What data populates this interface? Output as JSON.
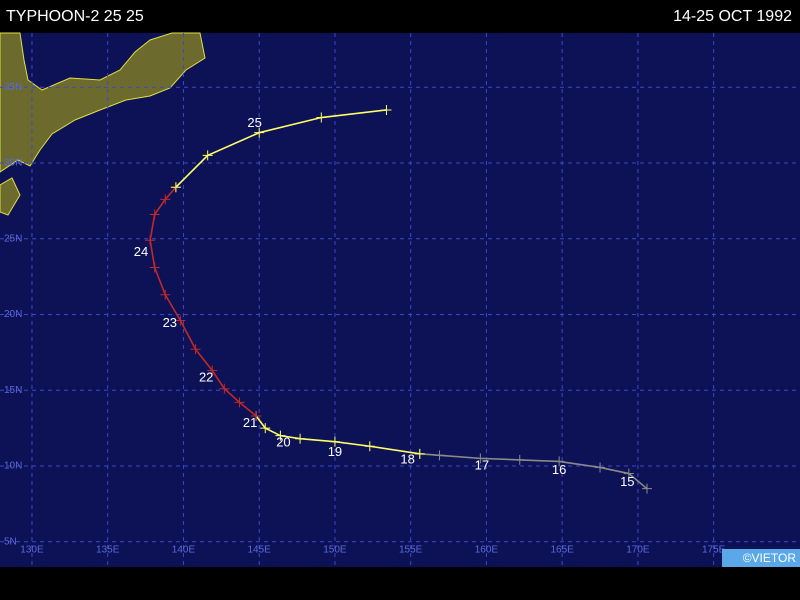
{
  "header": {
    "title": "TYPHOON-2 25 25",
    "date": "14-25 OCT 1992"
  },
  "map": {
    "lonlim": [
      127.89,
      180.7
    ],
    "latlim": [
      3.33,
      38.58
    ],
    "lat_ticks": [
      {
        "value": 5,
        "label": "5N"
      },
      {
        "value": 10,
        "label": "10N"
      },
      {
        "value": 15,
        "label": "15N"
      },
      {
        "value": 20,
        "label": "20N"
      },
      {
        "value": 25,
        "label": "25N"
      },
      {
        "value": 30,
        "label": "30N"
      },
      {
        "value": 35,
        "label": "35N"
      }
    ],
    "lon_ticks": [
      {
        "value": 130,
        "label": "130E"
      },
      {
        "value": 135,
        "label": "135E"
      },
      {
        "value": 140,
        "label": "140E"
      },
      {
        "value": 145,
        "label": "145E"
      },
      {
        "value": 150,
        "label": "150E"
      },
      {
        "value": 155,
        "label": "155E"
      },
      {
        "value": 160,
        "label": "160E"
      },
      {
        "value": 165,
        "label": "165E"
      },
      {
        "value": 170,
        "label": "170E"
      },
      {
        "value": 175,
        "label": "175E"
      }
    ]
  },
  "track": [
    {
      "color": "#8a8a8a",
      "points": [
        [
          170.6,
          8.5
        ],
        [
          169.4,
          9.5
        ],
        [
          167.5,
          9.9
        ],
        [
          164.8,
          10.3
        ],
        [
          162.2,
          10.4
        ],
        [
          159.6,
          10.5
        ],
        [
          156.9,
          10.7
        ],
        [
          155.6,
          10.8
        ]
      ]
    },
    {
      "color": "#ffff66",
      "points": [
        [
          155.6,
          10.8
        ],
        [
          152.3,
          11.3
        ],
        [
          150.0,
          11.6
        ],
        [
          147.7,
          11.8
        ],
        [
          146.4,
          12.0
        ],
        [
          145.4,
          12.5
        ],
        [
          144.8,
          13.3
        ]
      ]
    },
    {
      "color": "#c0282a",
      "points": [
        [
          144.8,
          13.3
        ],
        [
          143.7,
          14.2
        ],
        [
          142.7,
          15.1
        ],
        [
          141.9,
          16.3
        ],
        [
          140.8,
          17.7
        ],
        [
          139.8,
          19.6
        ],
        [
          138.8,
          21.3
        ],
        [
          138.1,
          23.1
        ],
        [
          137.8,
          24.9
        ],
        [
          138.1,
          26.6
        ],
        [
          138.8,
          27.6
        ],
        [
          139.5,
          28.4
        ]
      ]
    },
    {
      "color": "#ffff66",
      "points": [
        [
          139.5,
          28.4
        ],
        [
          141.6,
          30.5
        ],
        [
          145.0,
          32.0
        ],
        [
          149.1,
          33.0
        ],
        [
          153.4,
          33.5
        ]
      ]
    }
  ],
  "days": [
    {
      "label": "15",
      "lon": 169.3,
      "lat": 8.9
    },
    {
      "label": "16",
      "lon": 164.8,
      "lat": 9.7
    },
    {
      "label": "17",
      "lon": 159.7,
      "lat": 10.0
    },
    {
      "label": "18",
      "lon": 154.8,
      "lat": 10.4
    },
    {
      "label": "19",
      "lon": 150.0,
      "lat": 10.9
    },
    {
      "label": "20",
      "lon": 146.6,
      "lat": 11.5
    },
    {
      "label": "21",
      "lon": 144.4,
      "lat": 12.8
    },
    {
      "label": "22",
      "lon": 141.5,
      "lat": 15.8
    },
    {
      "label": "23",
      "lon": 139.1,
      "lat": 19.4
    },
    {
      "label": "24",
      "lon": 137.2,
      "lat": 24.1
    },
    {
      "label": "25",
      "lon": 144.7,
      "lat": 32.6
    }
  ],
  "credit": "©VIETOR"
}
